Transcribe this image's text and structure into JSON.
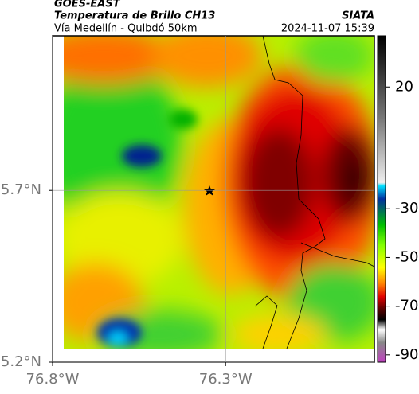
{
  "header": {
    "product": "GOES-EAST",
    "title": "Temperatura de Brillo CH13",
    "subtitle": "Vía Medellín - Quibdó 50km",
    "source": "SIATA",
    "timestamp": "2024-11-07 15:39"
  },
  "map": {
    "lat_range": [
      5.2,
      6.15
    ],
    "lon_range": [
      -76.8,
      -75.87
    ],
    "lat_ticks": [
      {
        "value": 5.7,
        "label": "5.7°N"
      },
      {
        "value": 5.2,
        "label": "5.2°N"
      }
    ],
    "lon_ticks": [
      {
        "value": -76.8,
        "label": "76.8°W"
      },
      {
        "value": -76.3,
        "label": "76.3°W"
      }
    ]
  },
  "colorbar": {
    "range": [
      41,
      -93
    ],
    "ticks": [
      20,
      -30,
      -50,
      -70,
      -90
    ]
  }
}
